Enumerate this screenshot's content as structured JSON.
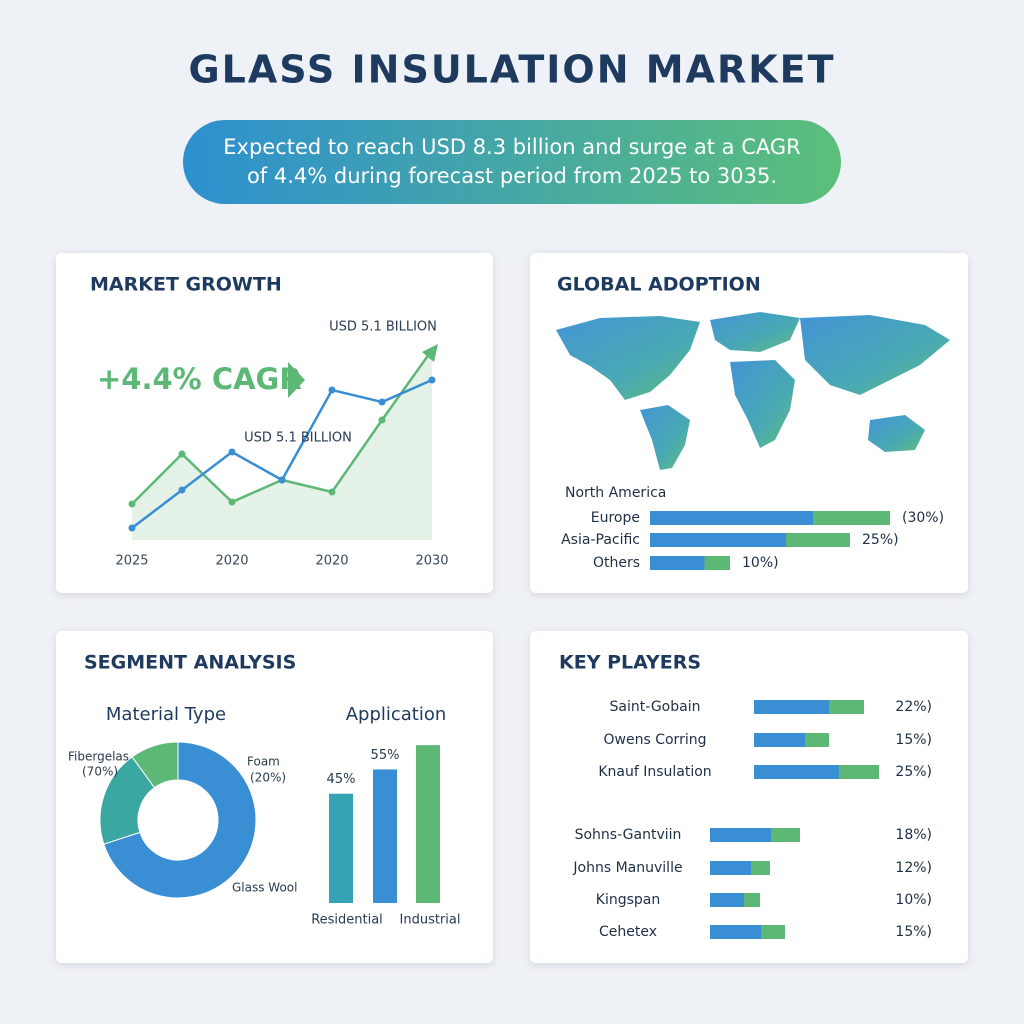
{
  "title": "GLASS INSULATION MARKET",
  "subtitle": [
    "Expected to reach USD 8.3 billion and surge at a CAGR",
    "of 4.4% during forecast period from 2025 to 3035."
  ],
  "segment_title": "SEGMENT ANALYSIS",
  "chart_data": [
    {
      "type": "line",
      "title": "MARKET GROWTH",
      "cagr_label": "+4.4% CAGR",
      "annotations": [
        "USD 5.1 BILLION",
        "USD 5.1 BILLION"
      ],
      "categories": [
        "2025",
        null,
        "2020",
        null,
        "2020",
        null,
        "2030"
      ],
      "ylim": [
        0,
        100
      ],
      "series": [
        {
          "name": null,
          "color": "#5cb874",
          "values": [
            18,
            43,
            19,
            30,
            24,
            60,
            95
          ]
        },
        {
          "name": null,
          "color": "#3a8fd4",
          "values": [
            6,
            25,
            44,
            30,
            75,
            69,
            80
          ]
        }
      ]
    },
    {
      "type": "hbar",
      "title": "GLOBAL ADOPTION",
      "categories": [
        "North America",
        "Europe",
        "Asia-Pacific",
        "Others"
      ],
      "values": [
        null,
        30,
        25,
        10
      ],
      "value_labels": [
        null,
        "(30%)",
        "25%)",
        "10%)"
      ],
      "colors": [
        "#3a8fd4",
        "#5cb874"
      ]
    },
    {
      "type": "donut",
      "title": "Material Type",
      "categories": [
        "Fibergelas",
        "Foam",
        "Glass Wool"
      ],
      "values": [
        70,
        20,
        10
      ],
      "value_labels": [
        "(70%)",
        "(20%)",
        null
      ],
      "colors": [
        "#3a8fd4",
        "#3aa8a0",
        "#5cb874"
      ]
    },
    {
      "type": "bar",
      "title": "Application",
      "categories": [
        "Residential",
        null,
        "Industrial"
      ],
      "values": [
        45,
        55,
        65
      ],
      "value_labels": [
        "45%",
        "55%",
        null
      ],
      "colors": [
        "#36a3b4",
        "#3a8fd4",
        "#5cb874"
      ],
      "ylim": [
        0,
        70
      ]
    },
    {
      "type": "hbar",
      "title": "KEY PLAYERS",
      "categories": [
        "Saint-Gobain",
        "Owens Corring",
        "Knauf Insulation",
        "Sohns-Gantviin",
        "Johns Manuville",
        "Kingspan",
        "Cehetex"
      ],
      "values": [
        22,
        15,
        25,
        18,
        12,
        10,
        15
      ],
      "value_labels": [
        "22%)",
        "15%)",
        "25%)",
        "18%)",
        "12%)",
        "10%)",
        "15%)"
      ],
      "colors": [
        "#3a8fd4",
        "#5cb874"
      ]
    }
  ]
}
